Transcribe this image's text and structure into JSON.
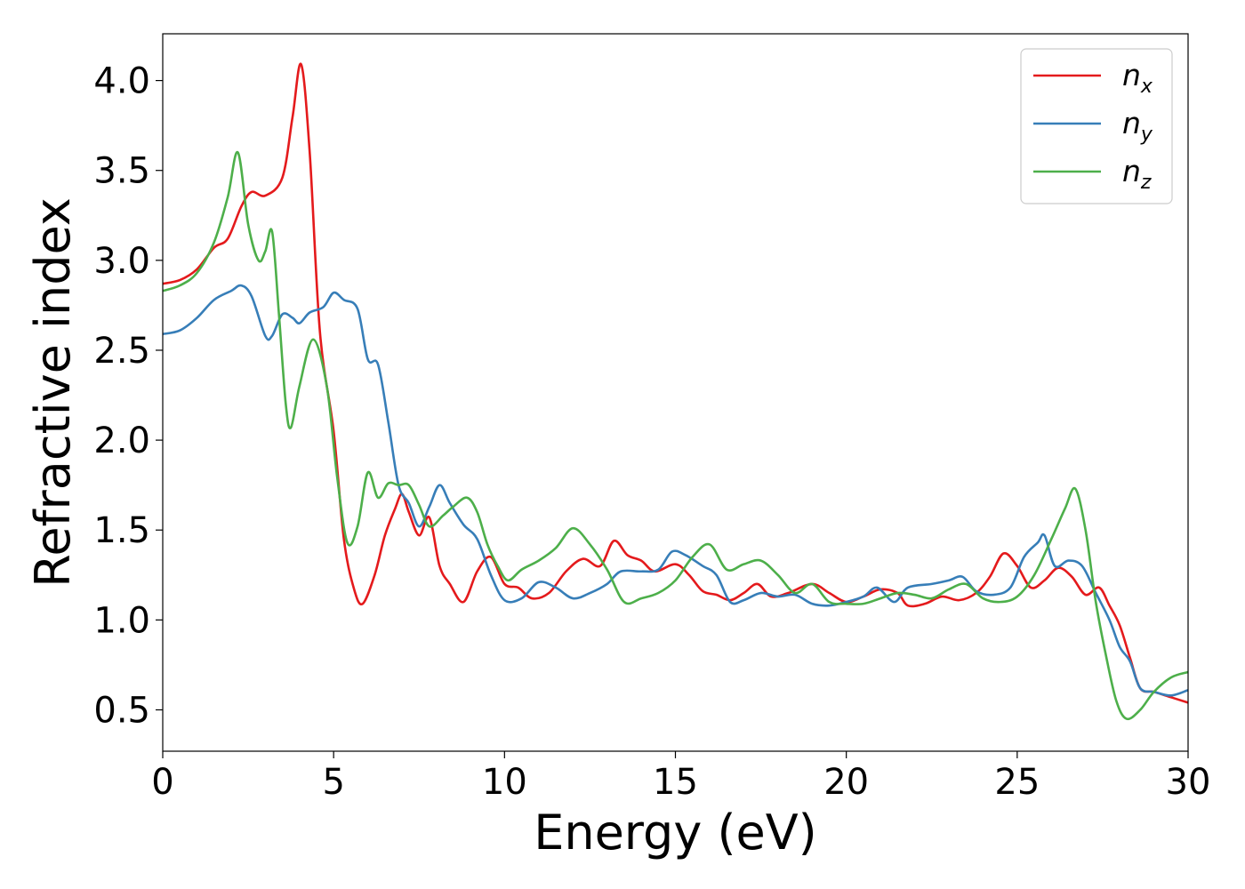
{
  "chart_data": {
    "type": "line",
    "title": "",
    "xlabel": "Energy (eV)",
    "ylabel": "Refractive index",
    "xlim": [
      0,
      30
    ],
    "ylim": [
      0.27,
      4.26
    ],
    "xticks": [
      0,
      5,
      10,
      15,
      20,
      25,
      30
    ],
    "xtick_labels": [
      "0",
      "5",
      "10",
      "15",
      "20",
      "25",
      "30"
    ],
    "yticks": [
      0.5,
      1.0,
      1.5,
      2.0,
      2.5,
      3.0,
      3.5,
      4.0
    ],
    "ytick_labels": [
      "0.5",
      "1.0",
      "1.5",
      "2.0",
      "2.5",
      "3.0",
      "3.5",
      "4.0"
    ],
    "grid": false,
    "legend_position": "top-right",
    "series": [
      {
        "name_base": "n",
        "name_sub": "x",
        "color": "#e41a1c",
        "points": [
          [
            0,
            2.87
          ],
          [
            0.5,
            2.89
          ],
          [
            1,
            2.95
          ],
          [
            1.5,
            3.07
          ],
          [
            1.9,
            3.12
          ],
          [
            2.3,
            3.3
          ],
          [
            2.6,
            3.38
          ],
          [
            3,
            3.36
          ],
          [
            3.5,
            3.46
          ],
          [
            3.8,
            3.8
          ],
          [
            4.05,
            4.09
          ],
          [
            4.3,
            3.6
          ],
          [
            4.6,
            2.6
          ],
          [
            5.0,
            2.05
          ],
          [
            5.3,
            1.45
          ],
          [
            5.6,
            1.17
          ],
          [
            5.85,
            1.09
          ],
          [
            6.2,
            1.25
          ],
          [
            6.5,
            1.47
          ],
          [
            6.8,
            1.62
          ],
          [
            7.0,
            1.7
          ],
          [
            7.2,
            1.6
          ],
          [
            7.5,
            1.47
          ],
          [
            7.8,
            1.57
          ],
          [
            8.1,
            1.3
          ],
          [
            8.4,
            1.2
          ],
          [
            8.8,
            1.1
          ],
          [
            9.2,
            1.27
          ],
          [
            9.6,
            1.35
          ],
          [
            10,
            1.2
          ],
          [
            10.4,
            1.18
          ],
          [
            10.8,
            1.12
          ],
          [
            11.3,
            1.15
          ],
          [
            11.8,
            1.27
          ],
          [
            12.3,
            1.34
          ],
          [
            12.8,
            1.3
          ],
          [
            13.2,
            1.44
          ],
          [
            13.6,
            1.36
          ],
          [
            14,
            1.33
          ],
          [
            14.4,
            1.27
          ],
          [
            15,
            1.31
          ],
          [
            15.4,
            1.25
          ],
          [
            15.8,
            1.16
          ],
          [
            16.2,
            1.14
          ],
          [
            16.6,
            1.11
          ],
          [
            17,
            1.15
          ],
          [
            17.4,
            1.2
          ],
          [
            17.8,
            1.13
          ],
          [
            18.3,
            1.15
          ],
          [
            19,
            1.2
          ],
          [
            19.5,
            1.15
          ],
          [
            20,
            1.1
          ],
          [
            20.5,
            1.13
          ],
          [
            21,
            1.17
          ],
          [
            21.5,
            1.15
          ],
          [
            21.8,
            1.08
          ],
          [
            22.3,
            1.09
          ],
          [
            22.8,
            1.13
          ],
          [
            23.3,
            1.11
          ],
          [
            23.8,
            1.15
          ],
          [
            24.2,
            1.24
          ],
          [
            24.6,
            1.37
          ],
          [
            25,
            1.3
          ],
          [
            25.4,
            1.18
          ],
          [
            25.8,
            1.22
          ],
          [
            26.2,
            1.29
          ],
          [
            26.6,
            1.24
          ],
          [
            27,
            1.14
          ],
          [
            27.4,
            1.18
          ],
          [
            27.7,
            1.08
          ],
          [
            28.0,
            0.97
          ],
          [
            28.3,
            0.79
          ],
          [
            28.6,
            0.62
          ],
          [
            29,
            0.6
          ],
          [
            29.5,
            0.57
          ],
          [
            30,
            0.54
          ]
        ]
      },
      {
        "name_base": "n",
        "name_sub": "y",
        "color": "#377eb8",
        "points": [
          [
            0,
            2.59
          ],
          [
            0.5,
            2.61
          ],
          [
            1,
            2.68
          ],
          [
            1.5,
            2.78
          ],
          [
            2,
            2.83
          ],
          [
            2.3,
            2.86
          ],
          [
            2.6,
            2.8
          ],
          [
            3.0,
            2.58
          ],
          [
            3.2,
            2.58
          ],
          [
            3.5,
            2.7
          ],
          [
            3.8,
            2.68
          ],
          [
            4.0,
            2.65
          ],
          [
            4.3,
            2.71
          ],
          [
            4.7,
            2.74
          ],
          [
            5.0,
            2.82
          ],
          [
            5.3,
            2.78
          ],
          [
            5.7,
            2.73
          ],
          [
            6.0,
            2.45
          ],
          [
            6.3,
            2.42
          ],
          [
            6.6,
            2.1
          ],
          [
            6.9,
            1.75
          ],
          [
            7.2,
            1.65
          ],
          [
            7.5,
            1.52
          ],
          [
            7.8,
            1.63
          ],
          [
            8.1,
            1.75
          ],
          [
            8.4,
            1.65
          ],
          [
            8.8,
            1.53
          ],
          [
            9.2,
            1.45
          ],
          [
            9.6,
            1.25
          ],
          [
            10.0,
            1.11
          ],
          [
            10.5,
            1.12
          ],
          [
            11,
            1.21
          ],
          [
            11.5,
            1.18
          ],
          [
            12,
            1.12
          ],
          [
            12.5,
            1.15
          ],
          [
            13,
            1.2
          ],
          [
            13.4,
            1.27
          ],
          [
            14,
            1.27
          ],
          [
            14.5,
            1.28
          ],
          [
            14.9,
            1.38
          ],
          [
            15.3,
            1.36
          ],
          [
            15.8,
            1.3
          ],
          [
            16.2,
            1.25
          ],
          [
            16.6,
            1.1
          ],
          [
            17,
            1.11
          ],
          [
            17.5,
            1.15
          ],
          [
            18,
            1.13
          ],
          [
            18.5,
            1.14
          ],
          [
            19,
            1.09
          ],
          [
            19.5,
            1.08
          ],
          [
            20,
            1.1
          ],
          [
            20.5,
            1.13
          ],
          [
            20.9,
            1.18
          ],
          [
            21.4,
            1.1
          ],
          [
            21.8,
            1.18
          ],
          [
            22.5,
            1.2
          ],
          [
            23,
            1.22
          ],
          [
            23.4,
            1.24
          ],
          [
            23.8,
            1.16
          ],
          [
            24.3,
            1.14
          ],
          [
            24.8,
            1.18
          ],
          [
            25.2,
            1.35
          ],
          [
            25.6,
            1.43
          ],
          [
            25.8,
            1.47
          ],
          [
            26.1,
            1.3
          ],
          [
            26.5,
            1.33
          ],
          [
            26.9,
            1.3
          ],
          [
            27.3,
            1.15
          ],
          [
            27.7,
            1.0
          ],
          [
            28.0,
            0.85
          ],
          [
            28.3,
            0.77
          ],
          [
            28.6,
            0.62
          ],
          [
            29,
            0.6
          ],
          [
            29.5,
            0.58
          ],
          [
            30,
            0.61
          ]
        ]
      },
      {
        "name_base": "n",
        "name_sub": "z",
        "color": "#4daf4a",
        "points": [
          [
            0,
            2.83
          ],
          [
            0.5,
            2.86
          ],
          [
            1,
            2.93
          ],
          [
            1.5,
            3.1
          ],
          [
            1.9,
            3.35
          ],
          [
            2.2,
            3.6
          ],
          [
            2.5,
            3.2
          ],
          [
            2.8,
            3.0
          ],
          [
            3.0,
            3.05
          ],
          [
            3.2,
            3.16
          ],
          [
            3.4,
            2.7
          ],
          [
            3.6,
            2.2
          ],
          [
            3.75,
            2.07
          ],
          [
            4.0,
            2.3
          ],
          [
            4.4,
            2.56
          ],
          [
            4.8,
            2.3
          ],
          [
            5.1,
            1.8
          ],
          [
            5.4,
            1.43
          ],
          [
            5.7,
            1.52
          ],
          [
            6.0,
            1.82
          ],
          [
            6.3,
            1.68
          ],
          [
            6.6,
            1.76
          ],
          [
            6.9,
            1.75
          ],
          [
            7.2,
            1.75
          ],
          [
            7.5,
            1.64
          ],
          [
            7.8,
            1.52
          ],
          [
            8.2,
            1.58
          ],
          [
            8.5,
            1.63
          ],
          [
            8.9,
            1.68
          ],
          [
            9.2,
            1.6
          ],
          [
            9.5,
            1.42
          ],
          [
            9.8,
            1.3
          ],
          [
            10.1,
            1.22
          ],
          [
            10.5,
            1.28
          ],
          [
            11,
            1.33
          ],
          [
            11.5,
            1.4
          ],
          [
            12,
            1.51
          ],
          [
            12.5,
            1.42
          ],
          [
            13,
            1.28
          ],
          [
            13.5,
            1.1
          ],
          [
            14,
            1.12
          ],
          [
            14.5,
            1.15
          ],
          [
            15,
            1.22
          ],
          [
            15.5,
            1.35
          ],
          [
            16,
            1.42
          ],
          [
            16.5,
            1.28
          ],
          [
            17,
            1.31
          ],
          [
            17.5,
            1.33
          ],
          [
            18,
            1.25
          ],
          [
            18.5,
            1.15
          ],
          [
            19,
            1.2
          ],
          [
            19.5,
            1.1
          ],
          [
            20,
            1.09
          ],
          [
            20.5,
            1.09
          ],
          [
            21,
            1.12
          ],
          [
            21.5,
            1.15
          ],
          [
            22,
            1.14
          ],
          [
            22.5,
            1.12
          ],
          [
            23,
            1.17
          ],
          [
            23.5,
            1.2
          ],
          [
            24,
            1.12
          ],
          [
            24.5,
            1.1
          ],
          [
            25,
            1.13
          ],
          [
            25.5,
            1.25
          ],
          [
            26,
            1.45
          ],
          [
            26.4,
            1.62
          ],
          [
            26.7,
            1.73
          ],
          [
            27.0,
            1.5
          ],
          [
            27.3,
            1.1
          ],
          [
            27.6,
            0.8
          ],
          [
            27.9,
            0.55
          ],
          [
            28.2,
            0.45
          ],
          [
            28.6,
            0.5
          ],
          [
            29,
            0.6
          ],
          [
            29.5,
            0.68
          ],
          [
            30,
            0.71
          ]
        ]
      }
    ]
  }
}
